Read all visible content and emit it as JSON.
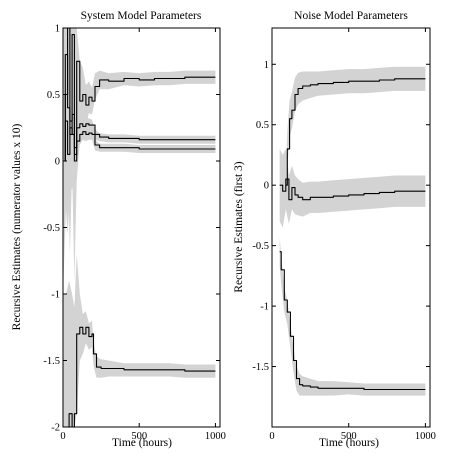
{
  "chart_data": [
    {
      "type": "line",
      "title": "System Model Parameters",
      "xlabel": "Time (hours)",
      "ylabel": "Recursive Estimates (numerator values x 10)",
      "xlim": [
        0,
        1030
      ],
      "ylim": [
        -2,
        1
      ],
      "xticks": [
        0,
        500,
        1000
      ],
      "yticks": [
        -2,
        -1.5,
        -1,
        -0.5,
        0,
        0.5,
        1
      ],
      "xtick_labels": [
        "0",
        "500",
        "1000"
      ],
      "ytick_labels": [
        "-2",
        "-1.5",
        "-1",
        "-0.5",
        "0",
        "0.5",
        "1"
      ],
      "grid": false,
      "legend": "none",
      "band_color": "#d3d3d3",
      "line_color": "#000000",
      "series": [
        {
          "x": [
            0,
            15,
            30,
            45,
            60,
            75,
            90,
            110,
            130,
            150,
            170,
            190,
            210,
            240,
            300,
            400,
            500,
            600,
            700,
            800,
            900,
            1000
          ],
          "values": [
            0,
            0.5,
            1.0,
            0.3,
            0.95,
            0.1,
            0.75,
            0.45,
            0.5,
            0.42,
            0.48,
            0.45,
            0.56,
            0.61,
            0.6,
            0.62,
            0.61,
            0.62,
            0.62,
            0.63,
            0.63,
            0.63
          ],
          "band": [
            1.0,
            1.0,
            1.0,
            1.0,
            1.0,
            1.0,
            0.9,
            0.3,
            0.2,
            0.15,
            0.12,
            0.1,
            0.1,
            0.07,
            0.06,
            0.05,
            0.05,
            0.05,
            0.05,
            0.05,
            0.05,
            0.05
          ]
        },
        {
          "x": [
            0,
            15,
            30,
            45,
            60,
            75,
            90,
            110,
            130,
            150,
            170,
            190,
            210,
            240,
            300,
            400,
            500,
            600,
            700,
            800,
            900,
            1000
          ],
          "values": [
            0,
            0.8,
            0.4,
            0.2,
            0.35,
            0.05,
            0.25,
            0.28,
            0.26,
            0.28,
            0.27,
            0.27,
            0.2,
            0.18,
            0.17,
            0.17,
            0.16,
            0.16,
            0.16,
            0.16,
            0.16,
            0.16
          ],
          "band": [
            0.6,
            0.6,
            0.6,
            0.5,
            0.4,
            0.3,
            0.2,
            0.08,
            0.06,
            0.05,
            0.05,
            0.04,
            0.04,
            0.03,
            0.03,
            0.03,
            0.03,
            0.03,
            0.03,
            0.03,
            0.03,
            0.03
          ]
        },
        {
          "x": [
            0,
            15,
            30,
            45,
            60,
            75,
            90,
            110,
            130,
            150,
            170,
            190,
            210,
            240,
            300,
            400,
            500,
            600,
            700,
            800,
            900,
            1000
          ],
          "values": [
            0,
            0.3,
            0.05,
            0.25,
            0.2,
            0.0,
            0.15,
            0.2,
            0.22,
            0.2,
            0.21,
            0.2,
            0.12,
            0.1,
            0.1,
            0.1,
            0.09,
            0.09,
            0.09,
            0.09,
            0.09,
            0.09
          ],
          "band": [
            0.6,
            0.6,
            0.6,
            0.5,
            0.4,
            0.3,
            0.2,
            0.08,
            0.06,
            0.05,
            0.05,
            0.04,
            0.04,
            0.03,
            0.03,
            0.03,
            0.03,
            0.03,
            0.03,
            0.03,
            0.03,
            0.03
          ]
        },
        {
          "x": [
            0,
            20,
            40,
            60,
            75,
            90,
            110,
            130,
            150,
            170,
            190,
            200,
            220,
            250,
            300,
            400,
            500,
            600,
            700,
            800,
            900,
            1000
          ],
          "values": [
            -2.0,
            -2.0,
            -1.9,
            -2.0,
            -1.9,
            -1.3,
            -1.25,
            -1.3,
            -1.25,
            -1.32,
            -1.3,
            -1.45,
            -1.55,
            -1.56,
            -1.56,
            -1.57,
            -1.57,
            -1.57,
            -1.57,
            -1.58,
            -1.58,
            -1.58
          ],
          "band": [
            1.0,
            1.0,
            1.0,
            1.0,
            0.8,
            0.6,
            0.25,
            0.15,
            0.12,
            0.1,
            0.1,
            0.09,
            0.08,
            0.07,
            0.06,
            0.05,
            0.05,
            0.05,
            0.05,
            0.05,
            0.05,
            0.05
          ]
        }
      ]
    },
    {
      "type": "line",
      "title": "Noise Model Parameters",
      "xlabel": "Time (hours)",
      "ylabel": "Recursive Estimates (first 3)",
      "xlim": [
        0,
        1030
      ],
      "ylim": [
        -2,
        1.3
      ],
      "xticks": [
        0,
        500,
        1000
      ],
      "yticks": [
        -1.5,
        -1,
        -0.5,
        0,
        0.5,
        1
      ],
      "xtick_labels": [
        "0",
        "500",
        "1000"
      ],
      "ytick_labels": [
        "-1.5",
        "-1",
        "-0.5",
        "0",
        "0.5",
        "1"
      ],
      "grid": false,
      "legend": "none",
      "band_color": "#d3d3d3",
      "line_color": "#000000",
      "series": [
        {
          "x": [
            90,
            100,
            115,
            130,
            150,
            170,
            200,
            250,
            300,
            400,
            500,
            600,
            700,
            800,
            900,
            1000
          ],
          "values": [
            0.0,
            0.3,
            0.55,
            0.62,
            0.75,
            0.8,
            0.82,
            0.83,
            0.84,
            0.85,
            0.86,
            0.86,
            0.87,
            0.88,
            0.88,
            0.88
          ],
          "band": [
            0.15,
            0.15,
            0.15,
            0.15,
            0.14,
            0.13,
            0.12,
            0.11,
            0.1,
            0.1,
            0.1,
            0.1,
            0.1,
            0.1,
            0.1,
            0.1
          ]
        },
        {
          "x": [
            50,
            70,
            90,
            110,
            130,
            150,
            170,
            200,
            250,
            300,
            400,
            500,
            600,
            700,
            800,
            900,
            1000
          ],
          "values": [
            0.0,
            -0.05,
            0.05,
            -0.12,
            -0.02,
            -0.08,
            -0.1,
            -0.12,
            -0.1,
            -0.1,
            -0.09,
            -0.08,
            -0.07,
            -0.06,
            -0.05,
            -0.05,
            -0.05
          ],
          "band": [
            0.3,
            0.3,
            0.25,
            0.2,
            0.18,
            0.16,
            0.15,
            0.14,
            0.13,
            0.13,
            0.13,
            0.13,
            0.13,
            0.13,
            0.13,
            0.13,
            0.13
          ]
        },
        {
          "x": [
            50,
            60,
            80,
            100,
            120,
            140,
            160,
            180,
            200,
            250,
            300,
            400,
            500,
            600,
            700,
            800,
            900,
            1000
          ],
          "values": [
            -0.55,
            -0.7,
            -0.95,
            -1.05,
            -1.25,
            -1.45,
            -1.6,
            -1.65,
            -1.66,
            -1.67,
            -1.68,
            -1.68,
            -1.68,
            -1.69,
            -1.69,
            -1.69,
            -1.69,
            -1.69
          ],
          "band": [
            0.12,
            0.12,
            0.1,
            0.1,
            0.1,
            0.1,
            0.1,
            0.09,
            0.08,
            0.07,
            0.06,
            0.06,
            0.05,
            0.05,
            0.05,
            0.05,
            0.05,
            0.05
          ]
        }
      ]
    }
  ]
}
